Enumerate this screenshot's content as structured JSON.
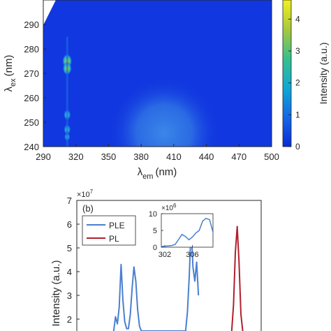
{
  "colors": {
    "map_background": "#1137e0",
    "axes_line": "#262626",
    "ple_line": "#4a7fd0",
    "pl_line": "#b0202c",
    "colormap_low": "#0a2bd6",
    "colormap_high": "#f0f01e"
  },
  "chart_data": [
    {
      "type": "heatmap",
      "panel": "top",
      "xlabel_main": "λ",
      "xlabel_sub": "em",
      "xlabel_unit": "(nm)",
      "ylabel_main": "λ",
      "ylabel_sub": "ex",
      "ylabel_unit": "(nm)",
      "xlim": [
        290,
        500
      ],
      "ylim": [
        240,
        300
      ],
      "x_ticks": [
        290,
        320,
        350,
        380,
        410,
        440,
        470,
        500
      ],
      "y_ticks": [
        240,
        250,
        260,
        270,
        280,
        290
      ],
      "colorbar": {
        "label": "Intensity (a.u.)",
        "ticks": [
          0,
          1,
          2,
          3,
          4
        ],
        "range": [
          0,
          4.6
        ]
      },
      "hotspots": [
        {
          "x": 312,
          "y": 275,
          "intensity": 3.8
        },
        {
          "x": 312,
          "y": 272,
          "intensity": 3.3
        },
        {
          "x": 312,
          "y": 253,
          "intensity": 2.5
        },
        {
          "x": 312,
          "y": 247,
          "intensity": 2.3
        },
        {
          "x": 312,
          "y": 244,
          "intensity": 1.5
        },
        {
          "x": 390,
          "y": 250,
          "intensity": 0.8
        }
      ]
    },
    {
      "type": "line",
      "panel": "bottom",
      "panel_label": "(b)",
      "ylabel": "Intensity (a.u.)",
      "y_multiplier": "×10",
      "y_multiplier_exp": "7",
      "ylim": [
        1.5,
        7
      ],
      "y_ticks": [
        2,
        3,
        4,
        5,
        6,
        7
      ],
      "x_range": [
        0,
        100
      ],
      "series": [
        {
          "name": "PLE",
          "x": [
            20,
            21,
            22,
            23,
            24,
            25,
            26,
            27,
            28,
            29,
            30,
            31,
            32,
            33,
            34,
            35,
            36,
            37,
            38,
            39,
            40,
            41,
            42,
            43,
            44,
            45,
            46,
            47,
            48,
            49,
            50,
            51,
            52,
            53,
            54,
            55,
            56,
            57,
            58,
            59,
            60,
            61,
            62,
            63,
            64,
            65,
            66
          ],
          "y": [
            1.5,
            2.1,
            1.8,
            2.5,
            4.3,
            2.8,
            1.9,
            1.6,
            1.6,
            2.2,
            3.3,
            4.2,
            3.6,
            2.4,
            1.7,
            1.5,
            1.5,
            1.5,
            1.5,
            1.5,
            1.5,
            1.5,
            1.5,
            1.5,
            1.5,
            1.5,
            1.5,
            1.5,
            1.5,
            1.5,
            1.5,
            1.5,
            1.5,
            1.5,
            1.5,
            1.5,
            1.5,
            1.5,
            1.5,
            1.5,
            2.3,
            3.8,
            5.9,
            4.2,
            3.6,
            4.4,
            3.0
          ]
        },
        {
          "name": "PL",
          "x": [
            84,
            85,
            86,
            87,
            88,
            89,
            90
          ],
          "y": [
            1.5,
            2.6,
            4.8,
            5.9,
            4.4,
            2.2,
            1.5
          ]
        }
      ],
      "legend": [
        "PLE",
        "PL"
      ],
      "legend_position": "top-left",
      "inset": {
        "multiplier": "×10",
        "multiplier_exp": "6",
        "x_ticks": [
          302,
          306
        ],
        "y_ticks": [
          0,
          5,
          10
        ],
        "xlim": [
          301.5,
          309
        ],
        "ylim": [
          0,
          10
        ],
        "x": [
          301.5,
          302,
          302.5,
          303,
          303.5,
          304,
          304.5,
          305,
          305.5,
          306,
          306.5,
          307,
          307.5,
          308,
          308.5,
          309
        ],
        "y": [
          0.2,
          0.3,
          0.4,
          0.5,
          0.8,
          2.3,
          3.8,
          3.2,
          2.2,
          3.0,
          4.2,
          5.0,
          7.8,
          8.6,
          8.2,
          4.5
        ]
      }
    }
  ]
}
